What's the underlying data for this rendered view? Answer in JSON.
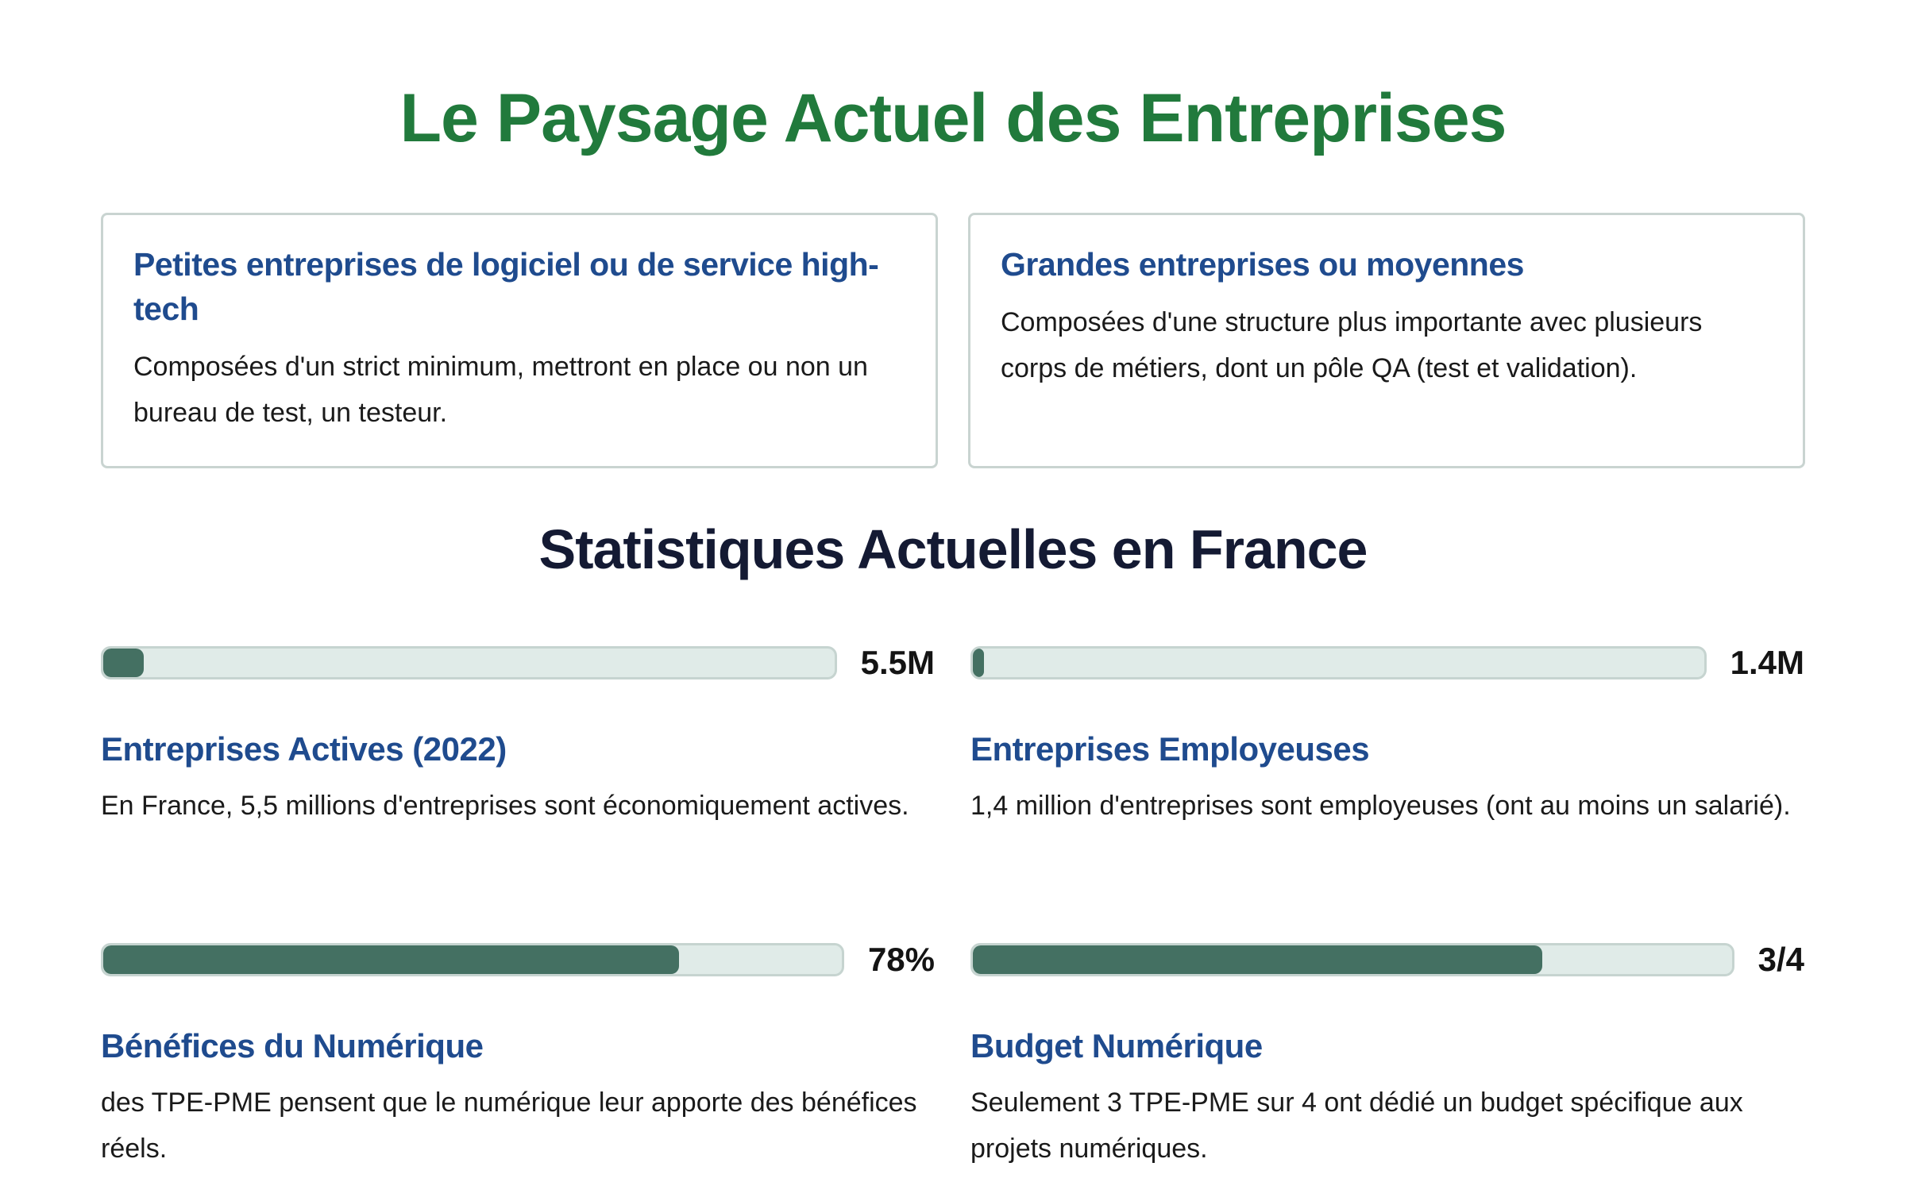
{
  "title": "Le Paysage Actuel des Entreprises",
  "cards": [
    {
      "heading": "Petites entreprises de logiciel ou de service high-tech",
      "text": "Composées d'un strict minimum, mettront en place ou non un bureau de test, un testeur."
    },
    {
      "heading": "Grandes entreprises ou moyennes",
      "text": "Composées d'une structure plus importante avec plusieurs corps de métiers, dont un pôle QA (test et validation)."
    }
  ],
  "stats_title": "Statistiques Actuelles en France",
  "stats": [
    {
      "value": "5.5M",
      "fill_percent": 5.5,
      "title": "Entreprises Actives (2022)",
      "text": "En France, 5,5 millions d'entreprises sont économiquement actives."
    },
    {
      "value": "1.4M",
      "fill_percent": 1.4,
      "title": "Entreprises Employeuses",
      "text": "1,4 million d'entreprises sont employeuses (ont au moins un salarié)."
    },
    {
      "value": "78%",
      "fill_percent": 78,
      "title": "Bénéfices du Numérique",
      "text": "des TPE-PME pensent que le numérique leur apporte des bénéfices réels."
    },
    {
      "value": "3/4",
      "fill_percent": 75,
      "title": "Budget Numérique",
      "text": "Seulement 3 TPE-PME sur 4 ont dédié un budget spécifique aux projets numériques."
    }
  ],
  "colors": {
    "title": "#217a3c",
    "heading": "#1f4b8e",
    "bar_fill": "#447062",
    "bar_track": "#e0ebe8"
  }
}
